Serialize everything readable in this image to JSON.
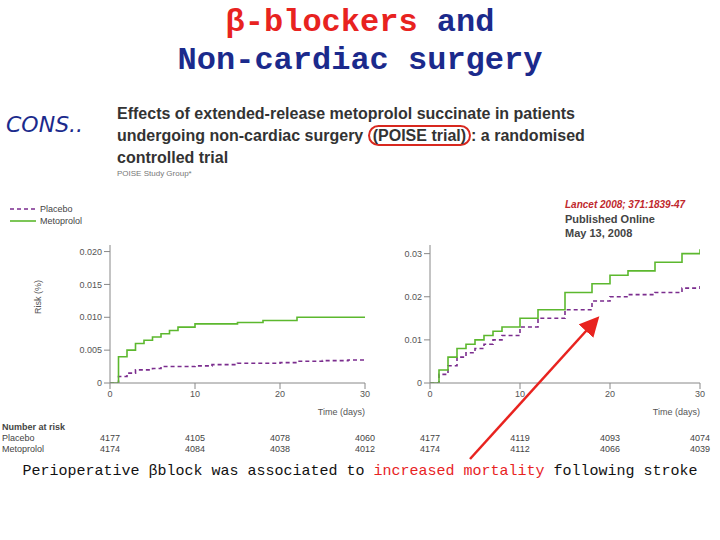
{
  "title": {
    "line1": [
      {
        "text": "β-blockers",
        "color": "#e8231f"
      },
      {
        "text": "and",
        "color": "#1b2a8c"
      }
    ],
    "line2": {
      "text": "Non-cardiac surgery",
      "color": "#1b2a8c"
    }
  },
  "tag": "CONS..",
  "paper": {
    "title": {
      "line1": "Effects of extended-release metoprolol succinate in patients",
      "line2_before": "undergoing non-cardiac surgery",
      "highlight": "(POISE trial)",
      "line2_after": ": a randomised",
      "line3": "controlled trial"
    },
    "author": "POISE Study Group*",
    "journal": "Lancet 2008; 371:1839-47",
    "published": "Published Online",
    "date": "May 13, 2008"
  },
  "caption": [
    {
      "text": "Perioperative βblock was associated to",
      "color": "#111111"
    },
    {
      "text": "increased mortality",
      "color": "#e8231f"
    },
    {
      "text": "following stroke",
      "color": "#111111"
    }
  ],
  "chart_data": [
    {
      "type": "line",
      "y_label": "Risk (%)",
      "x_label": "Time (days)",
      "x": [
        0,
        1,
        2,
        3,
        4,
        5,
        6,
        7,
        8,
        10,
        12,
        15,
        18,
        20,
        22,
        25,
        28,
        30
      ],
      "xlim": [
        0,
        30
      ],
      "xticks": [
        0,
        10,
        20,
        30
      ],
      "ylim": [
        0,
        0.021
      ],
      "yticks": [
        0,
        0.005,
        {
          "value": 0.01,
          "label": "0.010"
        },
        0.015,
        {
          "value": 0.02,
          "label": "0.020"
        }
      ],
      "grid": false,
      "legend": "upper left",
      "series": [
        {
          "name": "Placebo",
          "color": "#7b2d8e",
          "line_style": "dashed",
          "values": [
            0,
            0.001,
            0.0015,
            0.002,
            0.002,
            0.0022,
            0.0025,
            0.0025,
            0.0025,
            0.0026,
            0.0028,
            0.003,
            0.003,
            0.0031,
            0.0033,
            0.0034,
            0.0035,
            0.0035
          ]
        },
        {
          "name": "Metoprolol",
          "color": "#5cb82e",
          "line_style": "solid",
          "values": [
            0,
            0.004,
            0.005,
            0.006,
            0.0065,
            0.007,
            0.0075,
            0.008,
            0.0085,
            0.009,
            0.009,
            0.0092,
            0.0095,
            0.0095,
            0.01,
            0.01,
            0.01,
            0.01
          ]
        }
      ],
      "number_at_risk": {
        "label": "Number at risk",
        "rows": [
          {
            "name": "Placebo",
            "values": [
              4177,
              4105,
              4078,
              4060
            ]
          },
          {
            "name": "Metoprolol",
            "values": [
              4174,
              4084,
              4038,
              4012
            ]
          }
        ]
      }
    },
    {
      "type": "line",
      "x_label": "Time (days)",
      "x": [
        0,
        1,
        2,
        3,
        4,
        5,
        6,
        7,
        8,
        10,
        12,
        15,
        18,
        20,
        22,
        25,
        28,
        30
      ],
      "xlim": [
        0,
        30
      ],
      "xticks": [
        0,
        10,
        20,
        30
      ],
      "ylim": [
        0,
        0.032
      ],
      "yticks": [
        0,
        0.01,
        0.02,
        0.03
      ],
      "grid": false,
      "series": [
        {
          "color": "#7b2d8e",
          "line_style": "dashed",
          "values": [
            0,
            0.002,
            0.004,
            0.006,
            0.007,
            0.008,
            0.009,
            0.01,
            0.011,
            0.013,
            0.015,
            0.017,
            0.019,
            0.02,
            0.0205,
            0.021,
            0.022,
            0.0225
          ]
        },
        {
          "color": "#5cb82e",
          "line_style": "solid",
          "values": [
            0,
            0.003,
            0.006,
            0.008,
            0.009,
            0.01,
            0.011,
            0.012,
            0.013,
            0.015,
            0.017,
            0.021,
            0.023,
            0.025,
            0.026,
            0.028,
            0.03,
            0.031
          ]
        }
      ],
      "number_at_risk": {
        "rows": [
          {
            "values": [
              4177,
              4119,
              4093,
              4074
            ]
          },
          {
            "values": [
              4174,
              4112,
              4066,
              4039
            ]
          }
        ]
      }
    }
  ]
}
